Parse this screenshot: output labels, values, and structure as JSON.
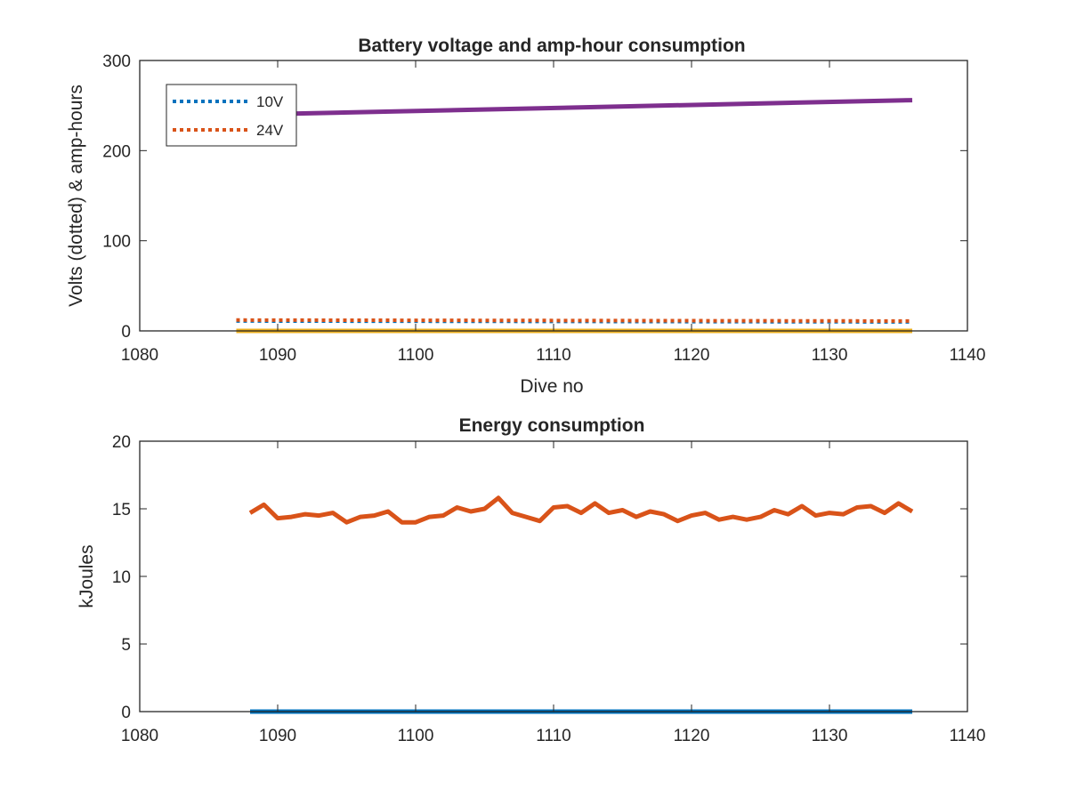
{
  "chart_data": [
    {
      "type": "line",
      "title": "Battery voltage and amp-hour consumption",
      "xlabel": "Dive no",
      "ylabel": "Volts (dotted) & amp-hours",
      "xlim": [
        1080,
        1140
      ],
      "ylim": [
        0,
        300
      ],
      "x_ticks": [
        "1080",
        "1090",
        "1100",
        "1110",
        "1120",
        "1130",
        "1140"
      ],
      "y_ticks": [
        "0",
        "100",
        "200",
        "300"
      ],
      "grid": false,
      "legend_position": "top-left",
      "series": [
        {
          "name": "10V",
          "color": "#0072BD",
          "style": "dotted",
          "x": [
            1087,
            1136
          ],
          "y": [
            11,
            10
          ]
        },
        {
          "name": "24V",
          "color": "#D95319",
          "style": "dotted",
          "x": [
            1087,
            1136
          ],
          "y": [
            12,
            11
          ]
        },
        {
          "color": "#EDB120",
          "style": "solid",
          "x": [
            1087,
            1136
          ],
          "y": [
            0,
            0
          ]
        },
        {
          "color": "#7E2F8E",
          "style": "solid",
          "x": [
            1088,
            1136
          ],
          "y": [
            240,
            256
          ]
        }
      ]
    },
    {
      "type": "line",
      "title": "Energy consumption",
      "xlabel": "",
      "ylabel": "kJoules",
      "xlim": [
        1080,
        1140
      ],
      "ylim": [
        0,
        20
      ],
      "x_ticks": [
        "1080",
        "1090",
        "1100",
        "1110",
        "1120",
        "1130",
        "1140"
      ],
      "y_ticks": [
        "0",
        "5",
        "10",
        "15",
        "20"
      ],
      "grid": false,
      "series": [
        {
          "color": "#0072BD",
          "style": "solid",
          "x": [
            1088,
            1136
          ],
          "y": [
            0,
            0
          ]
        },
        {
          "color": "#D95319",
          "style": "solid",
          "x": [
            1088,
            1089,
            1090,
            1091,
            1092,
            1093,
            1094,
            1095,
            1096,
            1097,
            1098,
            1099,
            1100,
            1101,
            1102,
            1103,
            1104,
            1105,
            1106,
            1107,
            1108,
            1109,
            1110,
            1111,
            1112,
            1113,
            1114,
            1115,
            1116,
            1117,
            1118,
            1119,
            1120,
            1121,
            1122,
            1123,
            1124,
            1125,
            1126,
            1127,
            1128,
            1129,
            1130,
            1131,
            1132,
            1133,
            1134,
            1135,
            1136
          ],
          "y": [
            14.7,
            15.3,
            14.3,
            14.4,
            14.6,
            14.5,
            14.7,
            14.0,
            14.4,
            14.5,
            14.8,
            14.0,
            14.0,
            14.4,
            14.5,
            15.1,
            14.8,
            15.0,
            15.8,
            14.7,
            14.4,
            14.1,
            15.1,
            15.2,
            14.7,
            15.4,
            14.7,
            14.9,
            14.4,
            14.8,
            14.6,
            14.1,
            14.5,
            14.7,
            14.2,
            14.4,
            14.2,
            14.4,
            14.9,
            14.6,
            15.2,
            14.5,
            14.7,
            14.6,
            15.1,
            15.2,
            14.7,
            15.4,
            14.8
          ]
        }
      ]
    }
  ]
}
